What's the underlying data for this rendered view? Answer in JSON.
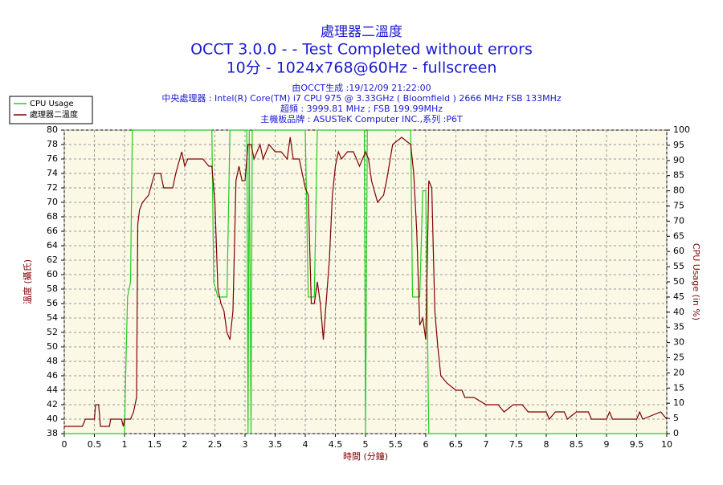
{
  "chart_data": {
    "type": "line",
    "title": [
      "處理器二溫度",
      "OCCT 3.0.0 -  - Test Completed without errors",
      "10分 - 1024x768@60Hz - fullscreen"
    ],
    "subtitle": [
      "由OCCT生成 :19/12/09 21:22:00",
      "中央處理器 : Intel(R) Core(TM) i7 CPU 975 @ 3.33GHz ( Bloomfield ) 2666 MHz FSB 133MHz",
      "超頻 : 3999.81 MHz ; FSB 199.99MHz",
      "主機板品牌 : ASUSTeK Computer INC.,系列 :P6T"
    ],
    "x_label": "時間 (分鐘)",
    "y_label": "溫度 (攝氏)",
    "y2_label": "CPU Usage (in %)",
    "xlim": [
      0,
      10
    ],
    "xticks": [
      0,
      0.5,
      1,
      1.5,
      2,
      2.5,
      3,
      3.5,
      4,
      4.5,
      5,
      5.5,
      6,
      6.5,
      7,
      7.5,
      8,
      8.5,
      9,
      9.5,
      10
    ],
    "ylim": [
      38,
      80
    ],
    "yticks": [
      38,
      40,
      42,
      44,
      46,
      48,
      50,
      52,
      54,
      56,
      58,
      60,
      62,
      64,
      66,
      68,
      70,
      72,
      74,
      76,
      78,
      80
    ],
    "y2lim": [
      0,
      100
    ],
    "y2ticks": [
      0,
      5,
      10,
      15,
      20,
      25,
      30,
      35,
      40,
      45,
      50,
      55,
      60,
      65,
      70,
      75,
      80,
      85,
      90,
      95,
      100
    ],
    "grid": true,
    "legend": "top-left",
    "series": [
      {
        "name": "CPU Usage",
        "color": "#22cc22",
        "axis": "y2",
        "x": [
          0,
          1.0,
          1.02,
          1.05,
          1.1,
          1.13,
          2.45,
          2.48,
          2.55,
          2.7,
          2.75,
          3.03,
          3.05,
          3.07,
          3.1,
          3.12,
          4.0,
          4.05,
          4.15,
          4.2,
          4.98,
          5.0,
          5.03,
          5.75,
          5.78,
          5.9,
          5.95,
          6.0,
          6.05,
          10
        ],
        "values": [
          0,
          0,
          20,
          45,
          50,
          100,
          100,
          50,
          45,
          45,
          100,
          100,
          0,
          100,
          0,
          100,
          100,
          45,
          45,
          100,
          100,
          0,
          100,
          100,
          45,
          45,
          80,
          80,
          0,
          0
        ]
      },
      {
        "name": "處理器二溫度",
        "color": "#800000",
        "x": [
          0,
          0.3,
          0.35,
          0.5,
          0.52,
          0.57,
          0.6,
          0.75,
          0.77,
          0.95,
          0.98,
          1.0,
          1.1,
          1.15,
          1.2,
          1.22,
          1.25,
          1.3,
          1.4,
          1.5,
          1.6,
          1.65,
          1.8,
          1.85,
          1.95,
          2.0,
          2.05,
          2.3,
          2.4,
          2.45,
          2.5,
          2.55,
          2.6,
          2.65,
          2.7,
          2.75,
          2.8,
          2.85,
          2.9,
          2.95,
          3.0,
          3.05,
          3.1,
          3.15,
          3.25,
          3.3,
          3.4,
          3.5,
          3.6,
          3.7,
          3.75,
          3.8,
          3.9,
          4.0,
          4.05,
          4.1,
          4.15,
          4.2,
          4.25,
          4.3,
          4.4,
          4.45,
          4.5,
          4.55,
          4.6,
          4.7,
          4.8,
          4.9,
          5.0,
          5.05,
          5.1,
          5.2,
          5.3,
          5.35,
          5.45,
          5.6,
          5.75,
          5.8,
          5.85,
          5.9,
          5.95,
          6.0,
          6.05,
          6.1,
          6.15,
          6.2,
          6.25,
          6.35,
          6.5,
          6.6,
          6.65,
          6.8,
          7.0,
          7.2,
          7.3,
          7.45,
          7.6,
          7.7,
          8.0,
          8.05,
          8.15,
          8.3,
          8.35,
          8.5,
          8.7,
          8.75,
          9.0,
          9.05,
          9.1,
          9.5,
          9.55,
          9.6,
          9.9,
          10
        ],
        "values": [
          39,
          39,
          40,
          40,
          42,
          42,
          39,
          39,
          40,
          40,
          39,
          40,
          40,
          41,
          43,
          67,
          69,
          70,
          71,
          74,
          74,
          72,
          72,
          74,
          77,
          75,
          76,
          76,
          75,
          75,
          70,
          58,
          56,
          55,
          52,
          51,
          55,
          73,
          75,
          73,
          73,
          78,
          78,
          76,
          78,
          76,
          78,
          77,
          77,
          76,
          79,
          76,
          76,
          72,
          71,
          56,
          56,
          59,
          56,
          51,
          62,
          71,
          75,
          77,
          76,
          77,
          77,
          75,
          77,
          76,
          73,
          70,
          71,
          73,
          78,
          79,
          78,
          74,
          66,
          53,
          54,
          51,
          73,
          72,
          55,
          50,
          46,
          45,
          44,
          44,
          43,
          43,
          42,
          42,
          41,
          42,
          42,
          41,
          41,
          40,
          41,
          41,
          40,
          41,
          41,
          40,
          40,
          41,
          40,
          40,
          41,
          40,
          41,
          40
        ]
      }
    ]
  }
}
